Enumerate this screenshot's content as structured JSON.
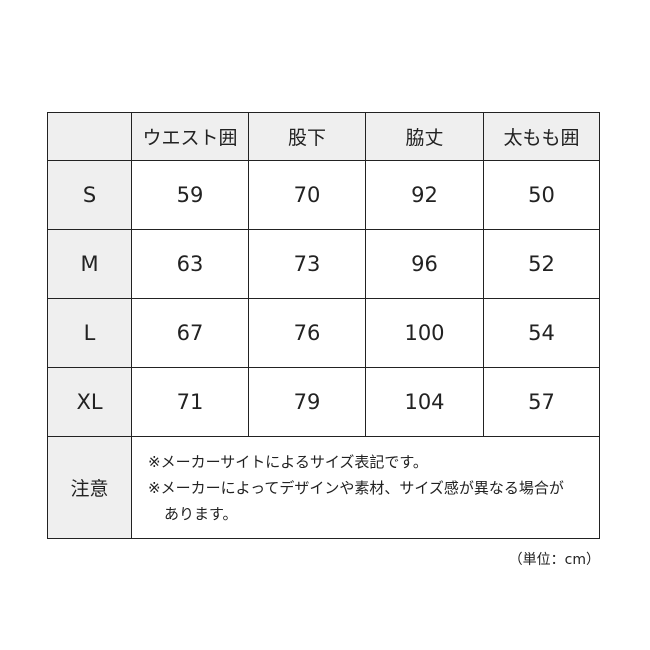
{
  "headers": [
    "",
    "ウエスト囲",
    "股下",
    "脇丈",
    "太もも囲"
  ],
  "rows": [
    {
      "size": "S",
      "values": [
        "59",
        "70",
        "92",
        "50"
      ]
    },
    {
      "size": "M",
      "values": [
        "63",
        "73",
        "96",
        "52"
      ]
    },
    {
      "size": "L",
      "values": [
        "67",
        "76",
        "100",
        "54"
      ]
    },
    {
      "size": "XL",
      "values": [
        "71",
        "79",
        "104",
        "57"
      ]
    }
  ],
  "notes": {
    "label": "注意",
    "line1": "※メーカーサイトによるサイズ表記です。",
    "line2": "※メーカーによってデザインや素材、サイズ感が異なる場合が",
    "line3": "あります。"
  },
  "unit": "（単位：cm）",
  "colors": {
    "header_bg": "#efefef",
    "border": "#222222"
  }
}
